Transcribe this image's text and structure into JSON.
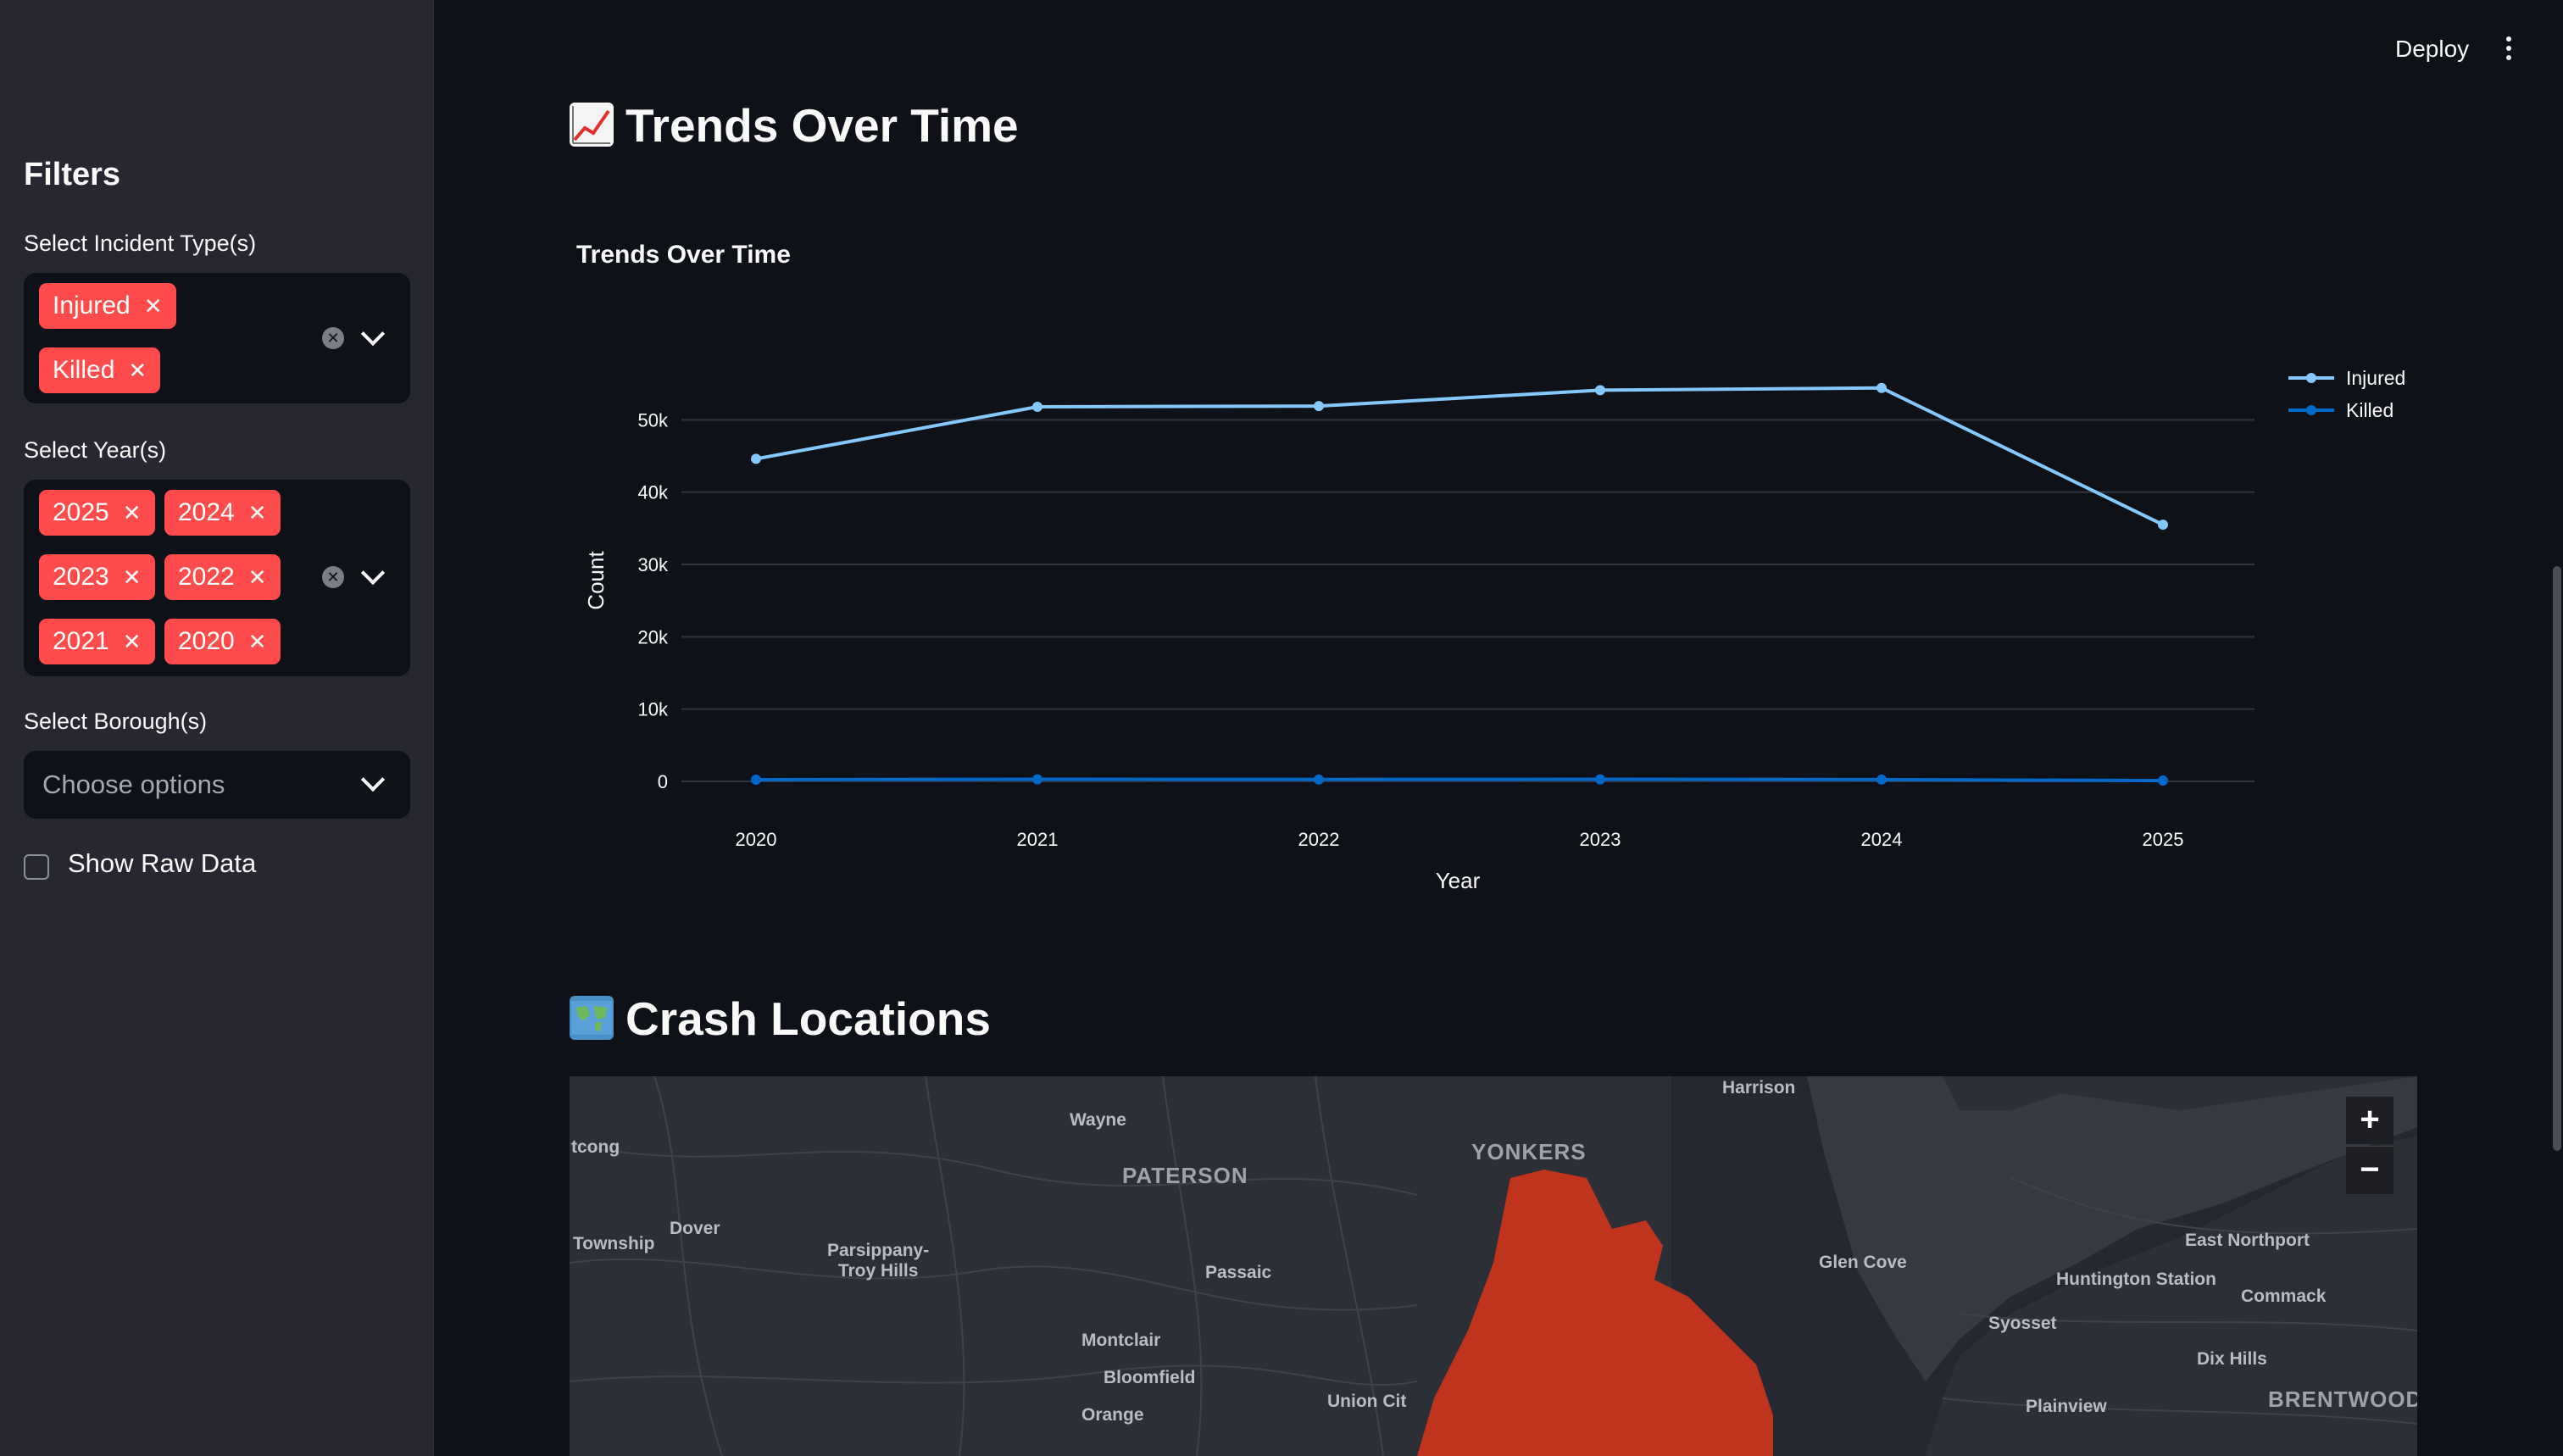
{
  "sidebar": {
    "title": "Filters",
    "incident_filter": {
      "label": "Select Incident Type(s)",
      "chips": [
        "Injured",
        "Killed"
      ]
    },
    "year_filter": {
      "label": "Select Year(s)",
      "chips": [
        "2025",
        "2024",
        "2023",
        "2022",
        "2021",
        "2020"
      ]
    },
    "borough_filter": {
      "label": "Select Borough(s)",
      "placeholder": "Choose options"
    },
    "raw_data_checkbox": {
      "label": "Show Raw Data",
      "checked": false
    }
  },
  "header": {
    "deploy_label": "Deploy"
  },
  "sections": {
    "trends_title": "Trends Over Time",
    "crash_title": "Crash Locations"
  },
  "chart_data": {
    "type": "line",
    "title": "Trends Over Time",
    "xlabel": "Year",
    "ylabel": "Count",
    "x": [
      2020,
      2021,
      2022,
      2023,
      2024,
      2025
    ],
    "x_tick_labels": [
      "2020",
      "2021",
      "2022",
      "2023",
      "2024",
      "2025"
    ],
    "y_ticks": [
      0,
      10000,
      20000,
      30000,
      40000,
      50000
    ],
    "y_tick_labels": [
      "0",
      "10k",
      "20k",
      "30k",
      "40k",
      "50k"
    ],
    "ylim": [
      0,
      60000
    ],
    "legend_position": "top-right",
    "series": [
      {
        "name": "Injured",
        "color": "#83c9ff",
        "values": [
          44600,
          51800,
          51900,
          54100,
          54400,
          35500
        ]
      },
      {
        "name": "Killed",
        "color": "#0068c9",
        "values": [
          240,
          290,
          270,
          290,
          250,
          110
        ]
      }
    ],
    "grid": true
  },
  "map": {
    "labels": [
      "Harrison",
      "Wayne",
      "PATERSON",
      "YONKERS",
      "tcong",
      "Township",
      "Dover",
      "Parsippany-\nTroy Hills",
      "Passaic",
      "Glen Cove",
      "East Northport",
      "Huntington Station",
      "Commack",
      "Syosset",
      "Dix Hills",
      "Montclair",
      "Bloomfield",
      "Orange",
      "Union Cit",
      "Plainview",
      "BRENTWOOD"
    ],
    "zoom_in": "+",
    "zoom_out": "−",
    "crash_color": "#c0341e"
  }
}
